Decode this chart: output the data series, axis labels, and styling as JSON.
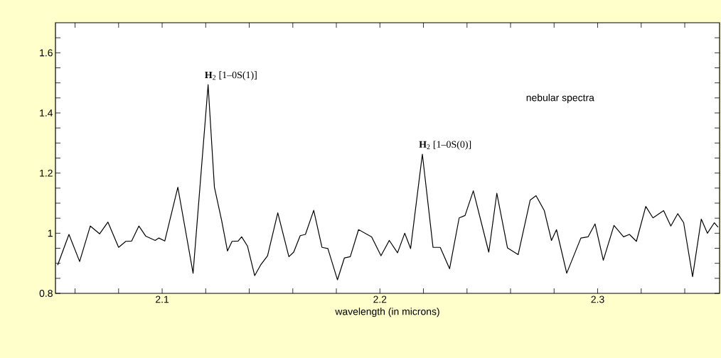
{
  "chart_data": {
    "type": "line",
    "xlabel": "wavelength (in microns)",
    "color": "#000000",
    "xlim": [
      2.051,
      2.356
    ],
    "ylim": [
      0.8,
      1.7
    ],
    "xticks": [
      {
        "value": 2.06,
        "label": null
      },
      {
        "value": 2.08,
        "label": null
      },
      2.1,
      {
        "value": 2.12,
        "label": null
      },
      {
        "value": 2.14,
        "label": null
      },
      {
        "value": 2.16,
        "label": null
      },
      {
        "value": 2.18,
        "label": null
      },
      2.2,
      {
        "value": 2.22,
        "label": null
      },
      {
        "value": 2.24,
        "label": null
      },
      {
        "value": 2.26,
        "label": null
      },
      {
        "value": 2.28,
        "label": null
      },
      2.3,
      {
        "value": 2.32,
        "label": null
      },
      {
        "value": 2.34,
        "label": null
      }
    ],
    "yticks": [
      0.8,
      {
        "value": 0.85,
        "label": null
      },
      {
        "value": 0.9,
        "label": null
      },
      {
        "value": 0.95,
        "label": null
      },
      1,
      {
        "value": 1.05,
        "label": null
      },
      {
        "value": 1.1,
        "label": null
      },
      {
        "value": 1.15,
        "label": null
      },
      1.2,
      {
        "value": 1.25,
        "label": null
      },
      {
        "value": 1.3,
        "label": null
      },
      {
        "value": 1.35,
        "label": null
      },
      1.4,
      {
        "value": 1.45,
        "label": null
      },
      {
        "value": 1.5,
        "label": null
      },
      {
        "value": 1.55,
        "label": null
      },
      1.6,
      {
        "value": 1.65,
        "label": null
      }
    ],
    "annotations": [
      {
        "text": "**H**$_{2}$ [1–0S(1)]",
        "x": 2.1211,
        "y": 1.494
      },
      {
        "text": "**H**$_{2}$ [1–0S(0)]",
        "x": 2.2195,
        "y": 1.263
      },
      "nebular spectra"
    ],
    "x": [
      2.052,
      2.0572,
      2.0621,
      2.067,
      2.0713,
      2.0751,
      2.08,
      2.0833,
      2.086,
      2.0893,
      2.0925,
      2.0968,
      2.0985,
      2.1012,
      2.1072,
      2.1142,
      2.1211,
      2.124,
      2.1273,
      2.13,
      2.1321,
      2.1349,
      2.1365,
      2.1392,
      2.1425,
      2.1452,
      2.1484,
      2.1531,
      2.1582,
      2.1604,
      2.1634,
      2.1658,
      2.1696,
      2.1734,
      2.1761,
      2.1805,
      2.1837,
      2.1864,
      2.1902,
      2.1962,
      2.2005,
      2.2043,
      2.2081,
      2.2114,
      2.2141,
      2.2195,
      2.2244,
      2.2277,
      2.232,
      2.2364,
      2.2391,
      2.2429,
      2.25,
      2.2537,
      2.2586,
      2.2635,
      2.269,
      2.2717,
      2.2755,
      2.2788,
      2.2811,
      2.2858,
      2.2923,
      2.2956,
      2.2988,
      2.3026,
      2.3075,
      2.3119,
      2.3146,
      2.3178,
      2.3221,
      2.3254,
      2.3303,
      2.3336,
      2.3368,
      2.3395,
      2.3436,
      2.3476,
      2.3504,
      2.3536,
      2.3553
    ],
    "values": [
      0.894,
      0.996,
      0.906,
      1.024,
      0.998,
      1.037,
      0.953,
      0.973,
      0.974,
      1.024,
      0.99,
      0.976,
      0.984,
      0.974,
      1.153,
      0.867,
      1.494,
      1.153,
      1.043,
      0.941,
      0.973,
      0.974,
      0.988,
      0.957,
      0.859,
      0.894,
      0.925,
      1.068,
      0.922,
      0.937,
      0.992,
      0.996,
      1.076,
      0.953,
      0.949,
      0.845,
      0.918,
      0.922,
      1.012,
      0.988,
      0.925,
      0.976,
      0.935,
      1.0,
      0.949,
      1.263,
      0.953,
      0.953,
      0.882,
      1.051,
      1.059,
      1.141,
      0.937,
      1.133,
      0.951,
      0.929,
      1.11,
      1.125,
      1.075,
      0.976,
      1.012,
      0.867,
      0.984,
      0.988,
      1.031,
      0.91,
      1.026,
      0.988,
      0.996,
      0.973,
      1.089,
      1.051,
      1.075,
      1.024,
      1.065,
      1.035,
      0.856,
      1.047,
      1.0,
      1.035,
      1.02
    ]
  }
}
